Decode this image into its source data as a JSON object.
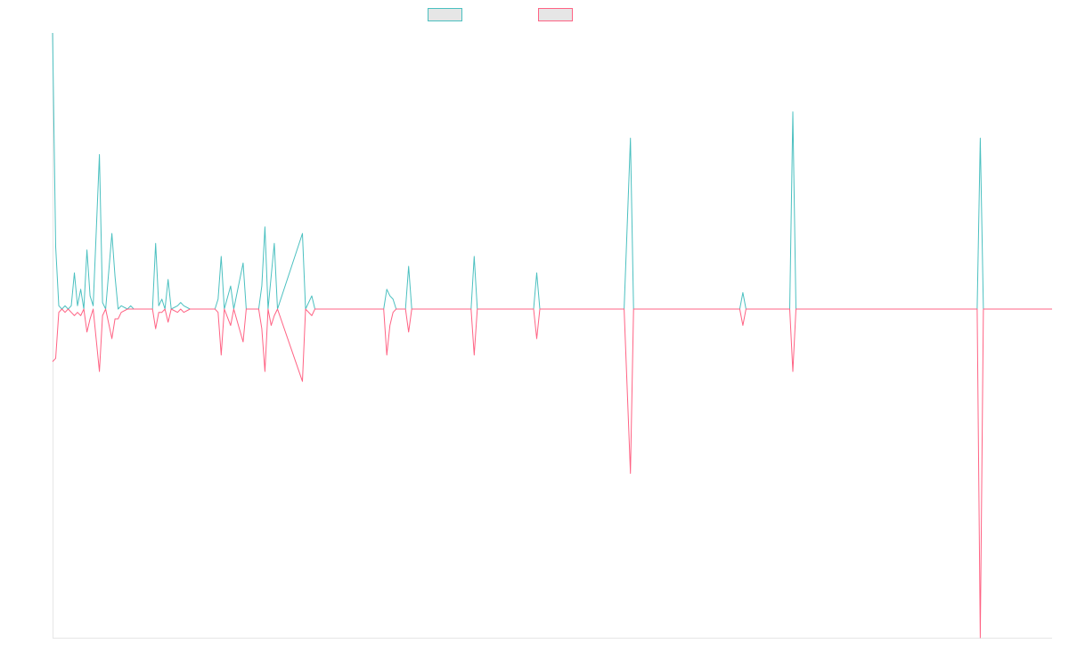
{
  "colors": {
    "series_a": "#4bc0c0",
    "series_b": "#ff6384",
    "axis": "#e6e6e6",
    "legend_fill": "#e6e6e6"
  },
  "chart_data": {
    "type": "line",
    "title": "",
    "xlabel": "",
    "ylabel": "",
    "legend_position": "top-center",
    "grid": false,
    "ylim": [
      -100,
      84
    ],
    "xlim": [
      0,
      320
    ],
    "series": [
      {
        "legend_label": "",
        "color": "#4bc0c0",
        "points": [
          [
            0,
            84
          ],
          [
            1,
            19
          ],
          [
            2,
            1
          ],
          [
            3,
            0
          ],
          [
            4,
            1
          ],
          [
            5,
            0
          ],
          [
            6,
            1
          ],
          [
            7,
            11
          ],
          [
            8,
            1
          ],
          [
            9,
            6
          ],
          [
            10,
            0
          ],
          [
            11,
            18
          ],
          [
            12,
            4
          ],
          [
            13,
            1
          ],
          [
            15,
            47
          ],
          [
            16,
            2
          ],
          [
            17,
            0
          ],
          [
            19,
            23
          ],
          [
            20,
            10
          ],
          [
            21,
            0
          ],
          [
            22,
            1
          ],
          [
            24,
            0
          ],
          [
            25,
            1
          ],
          [
            26,
            0
          ],
          [
            32,
            0
          ],
          [
            33,
            20
          ],
          [
            34,
            1
          ],
          [
            35,
            3
          ],
          [
            36,
            0
          ],
          [
            37,
            9
          ],
          [
            38,
            0
          ],
          [
            40,
            1
          ],
          [
            41,
            2
          ],
          [
            42,
            1
          ],
          [
            44,
            0
          ],
          [
            46,
            0
          ],
          [
            48,
            0
          ],
          [
            50,
            0
          ],
          [
            52,
            0
          ],
          [
            53,
            3
          ],
          [
            54,
            16
          ],
          [
            55,
            0
          ],
          [
            57,
            7
          ],
          [
            58,
            0
          ],
          [
            61,
            14
          ],
          [
            62,
            0
          ],
          [
            66,
            0
          ],
          [
            67,
            7
          ],
          [
            68,
            25
          ],
          [
            69,
            0
          ],
          [
            71,
            20
          ],
          [
            72,
            0
          ],
          [
            80,
            23
          ],
          [
            81,
            0
          ],
          [
            83,
            4
          ],
          [
            84,
            0
          ],
          [
            98,
            0
          ],
          [
            106,
            0
          ],
          [
            107,
            6
          ],
          [
            108,
            4
          ],
          [
            109,
            3
          ],
          [
            110,
            0
          ],
          [
            113,
            0
          ],
          [
            114,
            13
          ],
          [
            115,
            0
          ],
          [
            126,
            0
          ],
          [
            134,
            0
          ],
          [
            135,
            16
          ],
          [
            136,
            0
          ],
          [
            138,
            0
          ],
          [
            148,
            0
          ],
          [
            154,
            0
          ],
          [
            155,
            11
          ],
          [
            156,
            0
          ],
          [
            183,
            0
          ],
          [
            185,
            52
          ],
          [
            186,
            0
          ],
          [
            220,
            0
          ],
          [
            221,
            5
          ],
          [
            222,
            0
          ],
          [
            236,
            0
          ],
          [
            237,
            60
          ],
          [
            238,
            0
          ],
          [
            296,
            0
          ],
          [
            297,
            52
          ],
          [
            298,
            0
          ],
          [
            320,
            0
          ]
        ]
      },
      {
        "legend_label": "",
        "color": "#ff6384",
        "points": [
          [
            0,
            -16
          ],
          [
            1,
            -15
          ],
          [
            2,
            -1
          ],
          [
            3,
            0
          ],
          [
            4,
            -1
          ],
          [
            5,
            0
          ],
          [
            6,
            -1
          ],
          [
            7,
            -2
          ],
          [
            8,
            -1
          ],
          [
            9,
            -2
          ],
          [
            10,
            0
          ],
          [
            11,
            -7
          ],
          [
            12,
            -3
          ],
          [
            13,
            0
          ],
          [
            15,
            -19
          ],
          [
            16,
            -2
          ],
          [
            17,
            0
          ],
          [
            19,
            -9
          ],
          [
            20,
            -3
          ],
          [
            21,
            -3
          ],
          [
            22,
            -1
          ],
          [
            24,
            0
          ],
          [
            26,
            0
          ],
          [
            32,
            0
          ],
          [
            33,
            -6
          ],
          [
            34,
            -1
          ],
          [
            35,
            -1
          ],
          [
            36,
            0
          ],
          [
            37,
            -4
          ],
          [
            38,
            0
          ],
          [
            40,
            -1
          ],
          [
            41,
            0
          ],
          [
            42,
            -1
          ],
          [
            44,
            0
          ],
          [
            46,
            0
          ],
          [
            48,
            0
          ],
          [
            50,
            0
          ],
          [
            52,
            0
          ],
          [
            53,
            -1
          ],
          [
            54,
            -14
          ],
          [
            55,
            0
          ],
          [
            57,
            -5
          ],
          [
            58,
            0
          ],
          [
            61,
            -10
          ],
          [
            62,
            0
          ],
          [
            66,
            0
          ],
          [
            67,
            -6
          ],
          [
            68,
            -19
          ],
          [
            69,
            0
          ],
          [
            70,
            -5
          ],
          [
            71,
            -2
          ],
          [
            72,
            0
          ],
          [
            80,
            -22
          ],
          [
            81,
            0
          ],
          [
            83,
            -2
          ],
          [
            84,
            0
          ],
          [
            98,
            0
          ],
          [
            106,
            0
          ],
          [
            107,
            -14
          ],
          [
            108,
            -5
          ],
          [
            109,
            -1
          ],
          [
            110,
            0
          ],
          [
            113,
            0
          ],
          [
            114,
            -7
          ],
          [
            115,
            0
          ],
          [
            126,
            0
          ],
          [
            134,
            0
          ],
          [
            135,
            -14
          ],
          [
            136,
            0
          ],
          [
            138,
            0
          ],
          [
            148,
            0
          ],
          [
            154,
            0
          ],
          [
            155,
            -9
          ],
          [
            156,
            0
          ],
          [
            183,
            0
          ],
          [
            185,
            -50
          ],
          [
            186,
            0
          ],
          [
            220,
            0
          ],
          [
            221,
            -5
          ],
          [
            222,
            0
          ],
          [
            236,
            0
          ],
          [
            237,
            -19
          ],
          [
            238,
            0
          ],
          [
            296,
            0
          ],
          [
            297,
            -100
          ],
          [
            298,
            0
          ],
          [
            320,
            0
          ]
        ]
      }
    ]
  }
}
